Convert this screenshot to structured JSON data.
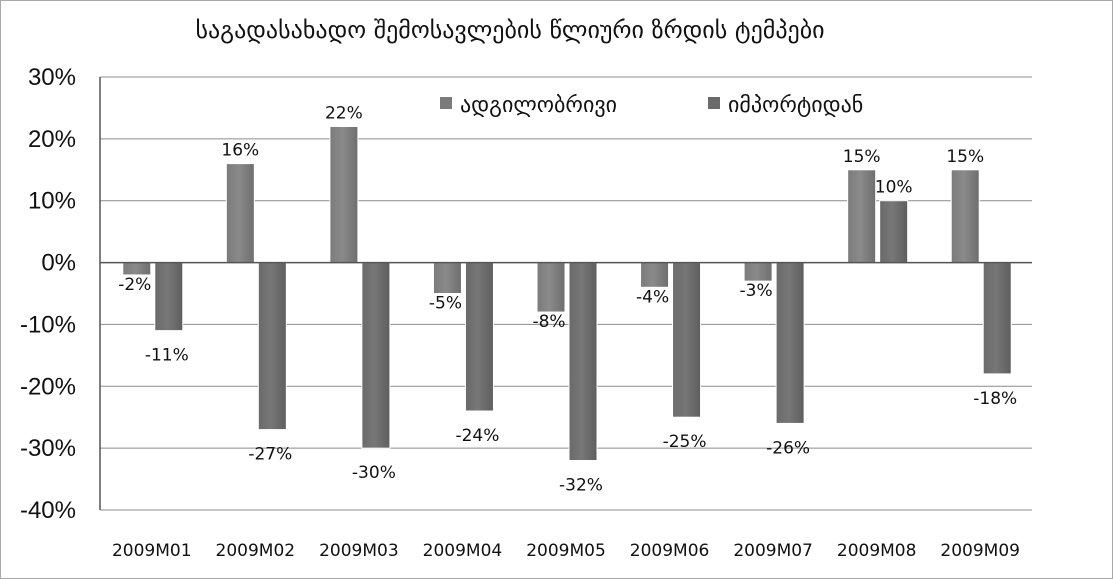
{
  "chart_data": {
    "type": "bar",
    "title": "საგადასახადო შემოსავლების წლიური ზრდის ტემპები",
    "categories": [
      "2009M01",
      "2009M02",
      "2009M03",
      "2009M04",
      "2009M05",
      "2009M06",
      "2009M07",
      "2009M08",
      "2009M09"
    ],
    "series": [
      {
        "name": "ადგილობრივი",
        "values": [
          -2,
          16,
          22,
          -5,
          -8,
          -4,
          -3,
          15,
          15
        ],
        "labels": [
          "-2%",
          "16%",
          "22%",
          "-5%",
          "-8%",
          "-4%",
          "-3%",
          "15%",
          "15%"
        ],
        "color": "#7b7b7b"
      },
      {
        "name": "იმპორტიდან",
        "values": [
          -11,
          -27,
          -30,
          -24,
          -32,
          -25,
          -26,
          10,
          -18
        ],
        "labels": [
          "-11%",
          "-27%",
          "-30%",
          "-24%",
          "-32%",
          "-25%",
          "-26%",
          "10%",
          "-18%"
        ],
        "color": "#6a6a6a"
      }
    ],
    "ylim": [
      -40,
      30
    ],
    "yticks": [
      30,
      20,
      10,
      0,
      -10,
      -20,
      -30,
      -40
    ],
    "ytick_labels": [
      "30%",
      "20%",
      "10%",
      "0%",
      "-10%",
      "-20%",
      "-30%",
      "-40%"
    ],
    "grid": true,
    "legend_position": "top-right"
  }
}
